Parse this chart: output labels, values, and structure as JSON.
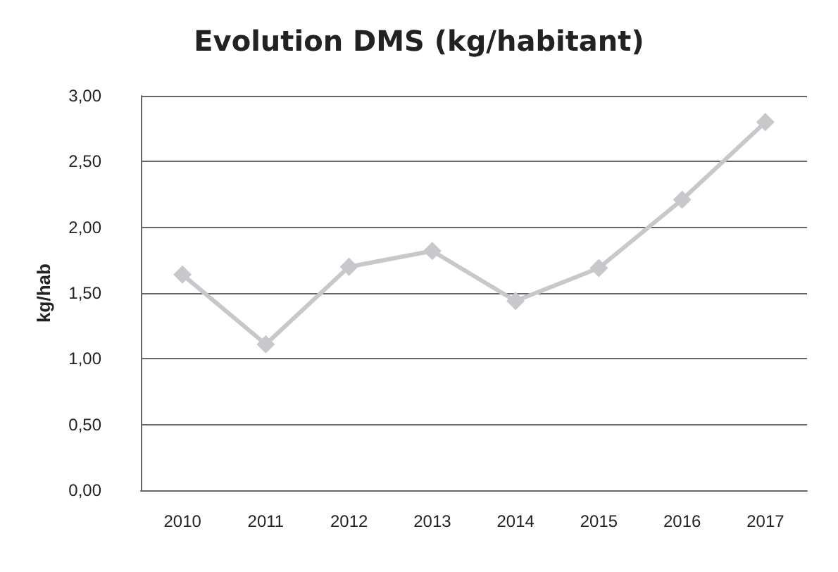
{
  "chart_data": {
    "type": "line",
    "title": "Evolution DMS (kg/habitant)",
    "ylabel": "kg/hab",
    "categories": [
      "2010",
      "2011",
      "2012",
      "2013",
      "2014",
      "2015",
      "2016",
      "2017"
    ],
    "series": [
      {
        "color": "#c8c8cc",
        "values": [
          1.64,
          1.11,
          1.7,
          1.82,
          1.44,
          1.69,
          2.21,
          2.8
        ]
      }
    ],
    "ylim": [
      0,
      3
    ],
    "yticks": [
      {
        "value": 0,
        "label": "0,00"
      },
      {
        "value": 0.5,
        "label": "0,50"
      },
      {
        "value": 1,
        "label": "1,00"
      },
      {
        "value": 1.5,
        "label": "1,50"
      },
      {
        "value": 2,
        "label": "2,00"
      },
      {
        "value": 2.5,
        "label": "2,50"
      },
      {
        "value": 3,
        "label": "3,00"
      }
    ],
    "grid": "y",
    "marker": "diamond",
    "line_style": "solid"
  }
}
